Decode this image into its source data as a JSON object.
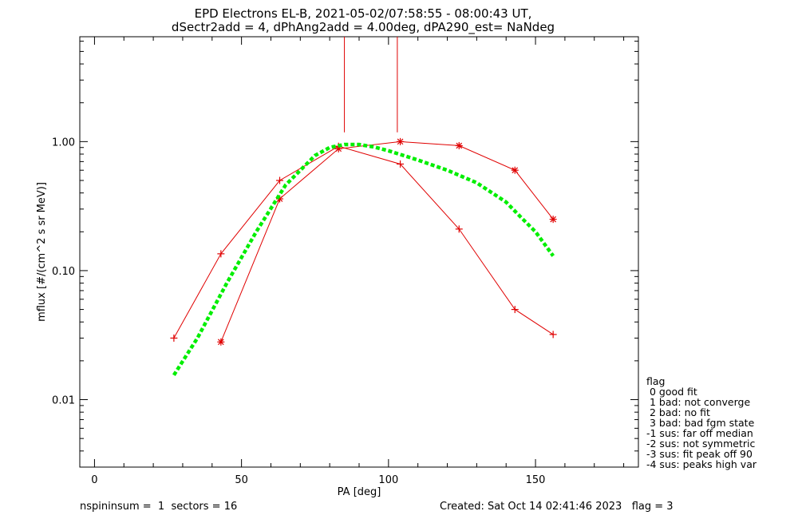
{
  "chart_data": {
    "type": "line",
    "title_line1": "EPD Electrons EL-B, 2021-05-02/07:58:55 - 08:00:43 UT,",
    "title_line2": "dSectr2add = 4, dPhAng2add = 4.00deg, dPA290_est=   NaNdeg",
    "xlabel": "PA [deg]",
    "ylabel": "mflux [#/(cm^2 s sr MeV)]",
    "xlim": [
      -5,
      185
    ],
    "ylim": [
      0.003,
      6.5
    ],
    "yscale": "log",
    "x_ticks": [
      0,
      50,
      100,
      150
    ],
    "x_tick_labels": [
      "0",
      "50",
      "100",
      "150"
    ],
    "y_ticks": [
      0.01,
      0.1,
      1.0
    ],
    "y_tick_labels": [
      "0.01",
      "0.10",
      "1.00"
    ],
    "series": [
      {
        "marker": "plus",
        "color": "#e00000",
        "x": [
          27,
          43,
          63,
          83,
          104,
          124,
          143,
          156
        ],
        "y": [
          0.03,
          0.135,
          0.5,
          0.92,
          0.67,
          0.21,
          0.05,
          0.032
        ]
      },
      {
        "marker": "asterisk",
        "color": "#e00000",
        "x": [
          43,
          63,
          83,
          104,
          124,
          143,
          156
        ],
        "y": [
          0.028,
          0.36,
          0.88,
          1.0,
          0.93,
          0.6,
          0.25
        ]
      },
      {
        "marker": "none",
        "style": "dashed-fit",
        "color": "#00ee00",
        "x": [
          27,
          35,
          45,
          55,
          65,
          75,
          80,
          85,
          90,
          95,
          100,
          110,
          120,
          130,
          140,
          145,
          150,
          156
        ],
        "y": [
          0.0155,
          0.03,
          0.08,
          0.2,
          0.46,
          0.78,
          0.9,
          0.95,
          0.95,
          0.91,
          0.85,
          0.72,
          0.6,
          0.48,
          0.34,
          0.26,
          0.2,
          0.13
        ]
      }
    ],
    "vertical_markers": [
      {
        "x": 85,
        "y_from": 1.18,
        "y_to": 6.5,
        "color": "#e00000"
      },
      {
        "x": 103,
        "y_from": 1.18,
        "y_to": 6.5,
        "color": "#e00000"
      }
    ]
  },
  "legend": {
    "title": "flag",
    "items": [
      " 0 good fit",
      " 1 bad: not converge",
      " 2 bad: no fit",
      " 3 bad: bad fgm state",
      "-1 sus: far off median",
      "-2 sus: not symmetric",
      "-3 sus: fit peak off 90",
      "-4 sus: peaks high var"
    ]
  },
  "footer": {
    "left": "nspininsum =  1  sectors = 16",
    "right": "Created: Sat Oct 14 02:41:46 2023   flag = 3"
  }
}
